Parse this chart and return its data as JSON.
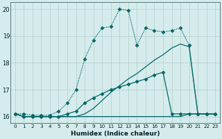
{
  "xlabel": "Humidex (Indice chaleur)",
  "background_color": "#d6ecec",
  "grid_color": "#b0cccc",
  "line_color": "#006666",
  "xlim": [
    -0.5,
    23.5
  ],
  "ylim": [
    15.75,
    20.25
  ],
  "yticks": [
    16,
    17,
    18,
    19,
    20
  ],
  "xticks": [
    0,
    1,
    2,
    3,
    4,
    5,
    6,
    7,
    8,
    9,
    10,
    11,
    12,
    13,
    14,
    15,
    16,
    17,
    18,
    19,
    20,
    21,
    22,
    23
  ],
  "series": [
    {
      "x": [
        0,
        1,
        2,
        3,
        4,
        5,
        6,
        7,
        8,
        9,
        10,
        11,
        12,
        13,
        14,
        15,
        16,
        17,
        18,
        19,
        20,
        21,
        22,
        23
      ],
      "y": [
        16.1,
        16.0,
        16.0,
        16.0,
        16.0,
        16.0,
        16.0,
        16.0,
        16.0,
        16.0,
        16.0,
        16.0,
        16.0,
        16.0,
        16.0,
        16.0,
        16.0,
        16.0,
        16.0,
        16.0,
        16.1,
        16.1,
        16.1,
        16.1
      ],
      "style": "-",
      "marker": null,
      "lw": 0.9
    },
    {
      "x": [
        0,
        1,
        2,
        3,
        4,
        5,
        6,
        7,
        8,
        9,
        10,
        11,
        12,
        13,
        14,
        15,
        16,
        17,
        18,
        19,
        20,
        21,
        22,
        23
      ],
      "y": [
        16.1,
        16.0,
        16.0,
        16.0,
        16.0,
        16.0,
        16.0,
        16.0,
        16.1,
        16.3,
        16.6,
        16.9,
        17.15,
        17.4,
        17.6,
        17.85,
        18.1,
        18.3,
        18.55,
        18.7,
        18.6,
        16.1,
        16.1,
        16.1
      ],
      "style": "-",
      "marker": null,
      "lw": 0.9
    },
    {
      "x": [
        0,
        1,
        2,
        3,
        4,
        5,
        6,
        7,
        8,
        9,
        10,
        11,
        12,
        13,
        14,
        15,
        16,
        17,
        18,
        19,
        20,
        21,
        22,
        23
      ],
      "y": [
        16.1,
        16.0,
        16.0,
        16.0,
        16.0,
        16.0,
        16.1,
        16.2,
        16.5,
        16.7,
        16.85,
        17.0,
        17.1,
        17.2,
        17.3,
        17.4,
        17.55,
        17.65,
        16.1,
        16.1,
        16.1,
        16.1,
        16.1,
        16.1
      ],
      "style": "-",
      "marker": "D",
      "markersize": 2.5,
      "lw": 0.9
    },
    {
      "x": [
        0,
        1,
        2,
        3,
        4,
        5,
        6,
        7,
        8,
        9,
        10,
        11,
        12,
        13,
        14,
        15,
        16,
        17,
        18,
        19,
        20,
        21,
        22,
        23
      ],
      "y": [
        16.1,
        16.1,
        16.05,
        16.05,
        16.05,
        16.2,
        16.5,
        17.0,
        18.15,
        18.85,
        19.3,
        19.35,
        20.0,
        19.95,
        18.65,
        19.3,
        19.2,
        19.15,
        19.2,
        19.3,
        18.65,
        16.1,
        16.1,
        16.1
      ],
      "style": "-",
      "marker": "D",
      "markersize": 2.5,
      "lw": 0.9,
      "dotted": true
    }
  ]
}
